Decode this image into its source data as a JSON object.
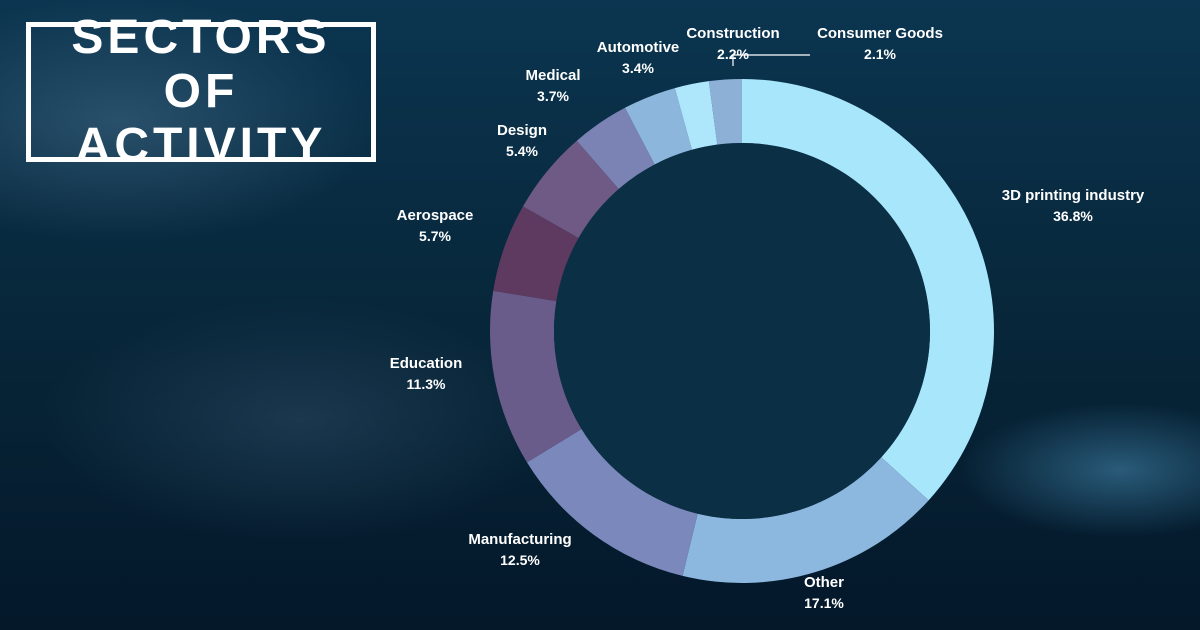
{
  "title": {
    "line1": "SECTORS OF",
    "line2": "ACTIVITY"
  },
  "chart_data": {
    "type": "pie",
    "donut": true,
    "categories": [
      "3D printing industry",
      "Other",
      "Manufacturing",
      "Education",
      "Aerospace",
      "Design",
      "Medical",
      "Automotive",
      "Construction",
      "Consumer Goods"
    ],
    "values": [
      36.8,
      17.1,
      12.5,
      11.3,
      5.7,
      5.4,
      3.7,
      3.4,
      2.2,
      2.1
    ],
    "value_labels": [
      "36.8%",
      "17.1%",
      "12.5%",
      "11.3%",
      "5.7%",
      "5.4%",
      "3.7%",
      "3.4%",
      "2.2%",
      "2.1%"
    ],
    "colors": [
      "#a8e6fc",
      "#8cb8df",
      "#7b88bb",
      "#6a5c8a",
      "#5e3a60",
      "#6e5a85",
      "#7b83b4",
      "#8db6dc",
      "#aee6fb",
      "#8cb0d6"
    ],
    "hole_color": "#0b3046",
    "labels_outside": true
  }
}
